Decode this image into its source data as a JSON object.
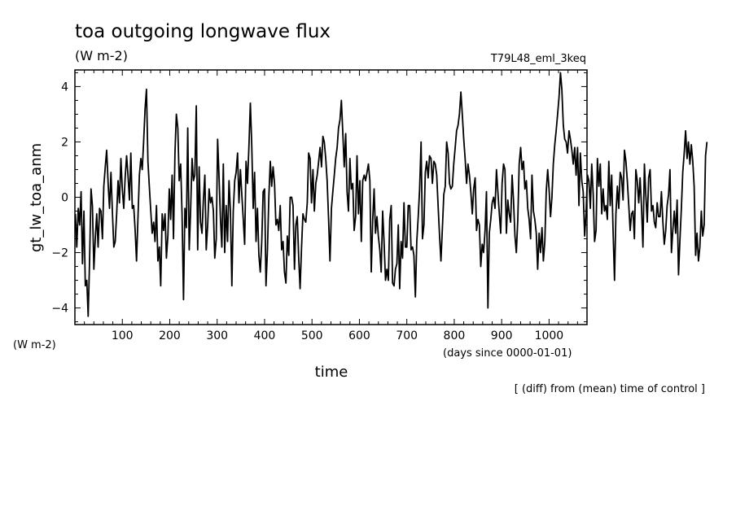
{
  "chart_data": {
    "type": "line",
    "title": "toa outgoing longwave flux",
    "units": "(W m-2)",
    "run_label": "T79L48_eml_3keq",
    "ylabel": "gt_lw_toa_anm",
    "y_unit_label": "(W m-2)",
    "xlabel": "time",
    "x_unit_label": "(days since 0000-01-01)",
    "note": "[ (diff) from (mean) time of control ]",
    "xlim": [
      0,
      1080
    ],
    "ylim": [
      -4.6,
      4.6
    ],
    "x_ticks": [
      100,
      200,
      300,
      400,
      500,
      600,
      700,
      800,
      900,
      1000
    ],
    "y_ticks": [
      -4,
      -2,
      0,
      2,
      4
    ],
    "grid": false,
    "series": [
      {
        "x_start": 1,
        "x_step": 3,
        "values": [
          -0.6,
          -1.8,
          -0.4,
          -1.0,
          0.2,
          -2.4,
          -0.5,
          -3.2,
          -3.0,
          -4.3,
          -2.2,
          0.3,
          -0.3,
          -2.6,
          -1.5,
          -0.6,
          -1.8,
          -0.4,
          -0.5,
          -1.5,
          0.4,
          1.1,
          1.7,
          0.5,
          -0.4,
          0.9,
          -0.5,
          -1.8,
          -1.6,
          -0.6,
          0.6,
          -0.2,
          1.4,
          0.3,
          -0.4,
          0.7,
          1.5,
          0.8,
          -0.1,
          1.6,
          -0.4,
          -0.3,
          -1.2,
          -2.3,
          -0.7,
          0.8,
          1.4,
          1.0,
          2.0,
          3.2,
          3.9,
          1.3,
          0.4,
          -0.5,
          -1.3,
          -0.9,
          -1.6,
          -0.3,
          -2.3,
          -1.8,
          -3.2,
          -0.6,
          -1.2,
          -0.6,
          -2.2,
          -1.4,
          0.3,
          -0.8,
          0.8,
          -1.5,
          1.6,
          3.0,
          2.5,
          0.6,
          1.2,
          -0.6,
          -3.7,
          -0.4,
          -1.1,
          2.5,
          -1.9,
          -0.5,
          1.4,
          0.6,
          0.8,
          3.3,
          -1.9,
          1.1,
          -0.9,
          -1.3,
          -0.1,
          0.8,
          -1.9,
          -1.0,
          0.3,
          -0.2,
          0.0,
          -0.5,
          -2.2,
          -1.5,
          2.1,
          0.7,
          -0.8,
          -1.8,
          1.2,
          -2.0,
          -0.3,
          -1.6,
          0.6,
          -0.5,
          -3.2,
          -0.5,
          0.6,
          0.9,
          1.6,
          -0.2,
          1.0,
          0.1,
          -0.8,
          -1.7,
          1.3,
          0.5,
          1.8,
          3.4,
          1.9,
          -0.4,
          0.9,
          -1.6,
          -0.4,
          -2.1,
          -2.7,
          -1.6,
          0.2,
          0.3,
          -3.2,
          -1.9,
          0.0,
          1.3,
          0.4,
          1.1,
          0.5,
          -1.0,
          -0.8,
          -1.2,
          -0.3,
          -1.9,
          -1.6,
          -2.7,
          -3.1,
          -1.4,
          -2.1,
          0.0,
          0.0,
          -0.3,
          -2.6,
          -1.0,
          -0.7,
          -2.2,
          -3.3,
          -1.8,
          -0.6,
          -0.8,
          -0.9,
          -0.2,
          1.6,
          1.4,
          -0.2,
          1.0,
          -0.5,
          0.5,
          0.8,
          1.3,
          1.8,
          1.1,
          2.2,
          2.0,
          1.4,
          0.6,
          -0.8,
          -2.3,
          -0.4,
          0.2,
          0.8,
          1.4,
          1.8,
          2.5,
          2.8,
          3.5,
          2.3,
          1.1,
          2.3,
          0.2,
          -0.5,
          1.4,
          0.3,
          0.5,
          -1.2,
          -0.7,
          1.5,
          -0.6,
          0.6,
          -1.6,
          0.6,
          0.8,
          0.6,
          0.9,
          1.2,
          0.6,
          -2.7,
          -0.8,
          0.3,
          -1.3,
          -0.7,
          -1.4,
          -1.9,
          -2.7,
          -0.5,
          -1.6,
          -3.0,
          -2.6,
          -3.0,
          -0.8,
          -0.3,
          -3.1,
          -3.2,
          -2.6,
          -2.4,
          -1.0,
          -3.3,
          -1.6,
          -2.2,
          -0.2,
          -1.8,
          -1.8,
          -0.3,
          -0.3,
          -1.9,
          -1.8,
          -2.1,
          -3.6,
          -1.6,
          -0.7,
          0.3,
          2.0,
          -1.5,
          -1.0,
          0.9,
          1.3,
          0.7,
          1.5,
          1.4,
          0.5,
          1.3,
          1.2,
          0.8,
          -0.3,
          -1.4,
          -2.3,
          -1.1,
          0.1,
          0.4,
          2.0,
          1.6,
          0.5,
          0.3,
          0.4,
          1.2,
          1.8,
          2.4,
          2.6,
          3.0,
          3.8,
          3.0,
          2.1,
          1.4,
          0.5,
          1.2,
          0.8,
          0.2,
          -0.6,
          0.3,
          0.7,
          -1.2,
          -0.8,
          -1.0,
          -2.5,
          -1.7,
          -2.0,
          -1.2,
          0.2,
          -4.0,
          -1.3,
          -0.8,
          -0.2,
          0.0,
          -0.4,
          1.0,
          0.2,
          -0.6,
          -1.3,
          0.5,
          1.2,
          1.0,
          -1.3,
          -0.1,
          -0.6,
          -0.9,
          0.8,
          -0.1,
          -1.4,
          -2.0,
          -0.8,
          1.2,
          1.8,
          1.0,
          1.3,
          0.3,
          0.6,
          -0.4,
          -0.8,
          -1.5,
          0.8,
          -0.5,
          -0.8,
          -1.3,
          -2.6,
          -1.3,
          -2.0,
          -1.1,
          -2.3,
          -1.6,
          0.2,
          1.0,
          0.3,
          -0.7,
          0.0,
          1.2,
          1.9,
          2.4,
          3.0,
          3.6,
          4.5,
          3.9,
          2.6,
          2.1,
          2.0,
          1.6,
          2.4,
          2.1,
          1.7,
          1.2,
          1.8,
          0.8,
          1.8,
          -0.3,
          1.6,
          0.6,
          0.2,
          -1.4,
          -0.6,
          0.8,
          0.6,
          -0.4,
          1.2,
          0.1,
          -1.6,
          -1.2,
          1.4,
          0.4,
          1.2,
          -0.6,
          0.3,
          -0.5,
          -0.3,
          -0.8,
          1.3,
          -0.3,
          0.8,
          -1.2,
          -3.0,
          -0.6,
          0.4,
          -0.4,
          0.9,
          0.7,
          -0.1,
          1.7,
          1.3,
          0.6,
          -0.3,
          -1.2,
          -0.6,
          -0.5,
          -1.5,
          1.0,
          0.6,
          -0.2,
          0.7,
          -0.4,
          -1.8,
          1.2,
          0.1,
          -0.9,
          0.7,
          1.0,
          -0.5,
          -0.3,
          -0.9,
          -1.1,
          -0.2,
          -0.7,
          -0.7,
          0.2,
          -0.9,
          -1.7,
          -1.2,
          -0.3,
          0.1,
          1.0,
          -2.0,
          -1.2,
          -0.5,
          -1.3,
          -0.1,
          -2.8,
          -1.5,
          -0.4,
          0.9,
          1.6,
          2.4,
          1.4,
          2.0,
          1.2,
          1.9,
          1.3,
          0.4,
          -2.1,
          -1.3,
          -2.3,
          -1.8,
          -0.5,
          -1.4,
          -1.0,
          1.5,
          2.0
        ]
      }
    ]
  }
}
